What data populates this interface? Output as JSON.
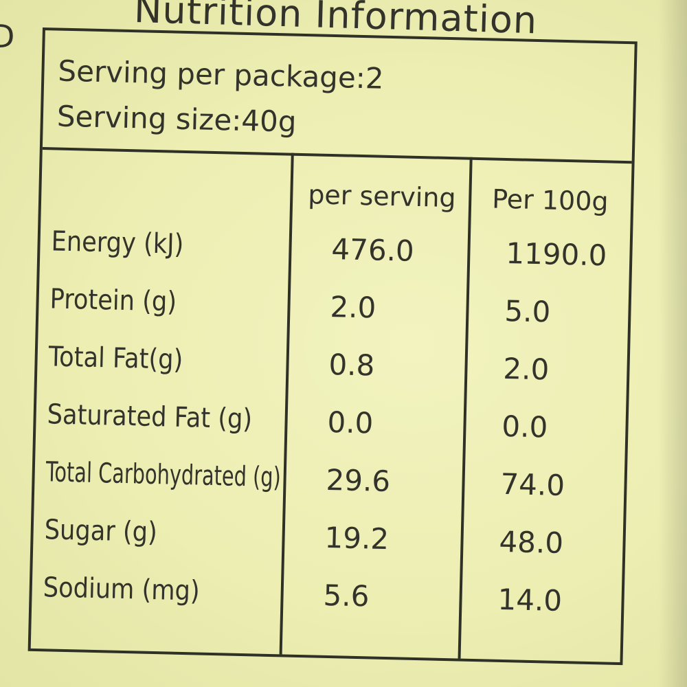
{
  "title": "Nutrition Information",
  "serving": {
    "per_package": "Serving per package:2",
    "size": "Serving size:40g"
  },
  "columns": [
    "per serving",
    "Per 100g"
  ],
  "rows": [
    {
      "name": "Energy (kJ)",
      "per_serving": "476.0",
      "per_100g": "1190.0"
    },
    {
      "name": "Protein (g)",
      "per_serving": "2.0",
      "per_100g": "5.0"
    },
    {
      "name": "Total Fat(g)",
      "per_serving": "0.8",
      "per_100g": "2.0"
    },
    {
      "name": "Saturated Fat (g)",
      "per_serving": "0.0",
      "per_100g": "0.0"
    },
    {
      "name": "Total Carbohydrated (g)",
      "per_serving": "29.6",
      "per_100g": "74.0"
    },
    {
      "name": "Sugar (g)",
      "per_serving": "19.2",
      "per_100g": "48.0"
    },
    {
      "name": "Sodium (mg)",
      "per_serving": "5.6",
      "per_100g": "14.0"
    }
  ],
  "colors": {
    "label_background": "#eef0b4",
    "ink": "#33332b"
  }
}
